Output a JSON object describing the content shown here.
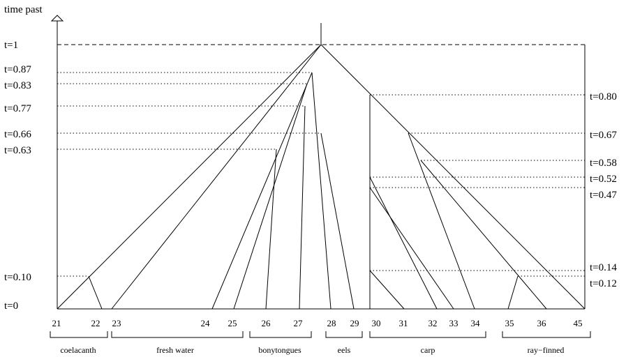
{
  "axis_title": "time past",
  "left_times": [
    "t=1",
    "t=0.87",
    "t=0.83",
    "t=0.77",
    "t=0.66",
    "t=0.63",
    "t=0.10",
    "t=0"
  ],
  "right_times": [
    "t=0.80",
    "t=0.67",
    "t=0.58",
    "t=0.52",
    "t=0.47",
    "t=0.14",
    "t=0.12"
  ],
  "leaves": [
    "21",
    "22",
    "23",
    "24",
    "25",
    "26",
    "27",
    "28",
    "29",
    "30",
    "31",
    "32",
    "33",
    "34",
    "35",
    "36",
    "45"
  ],
  "groups": [
    "coelacanth",
    "fresh water",
    "bonytongues",
    "eels",
    "carp",
    "ray−finned"
  ]
}
